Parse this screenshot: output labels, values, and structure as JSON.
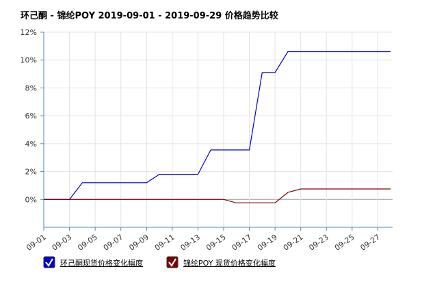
{
  "chart_data": {
    "type": "line",
    "title": "环己酮 - 锦纶POY 2019-09-01 - 2019-09-29 价格趋势比较",
    "categories": [
      "09-01",
      null,
      "09-03",
      null,
      "09-05",
      null,
      "09-07",
      null,
      "09-09",
      null,
      "09-11",
      null,
      "09-13",
      null,
      "09-15",
      null,
      "09-17",
      null,
      "09-19",
      null,
      "09-21",
      null,
      "09-23",
      null,
      "09-25",
      null,
      "09-27",
      null
    ],
    "series": [
      {
        "name": "环己酮现货价格变化幅度",
        "color": "#0000cc",
        "values": [
          0,
          0,
          0,
          1.2,
          1.2,
          1.2,
          1.2,
          1.2,
          1.2,
          1.8,
          1.8,
          1.8,
          1.8,
          3.55,
          3.55,
          3.55,
          3.55,
          9.1,
          9.1,
          10.6,
          10.6,
          10.6,
          10.6,
          10.6,
          10.6,
          10.6,
          10.6,
          10.6
        ]
      },
      {
        "name": "锦纶POY 现货价格变化幅度",
        "color": "#800000",
        "values": [
          0,
          0,
          0,
          0,
          0,
          0,
          0,
          0,
          0,
          0,
          0,
          0,
          0,
          0,
          0,
          -0.25,
          -0.25,
          -0.25,
          -0.25,
          0.5,
          0.75,
          0.75,
          0.75,
          0.75,
          0.75,
          0.75,
          0.75,
          0.75
        ]
      }
    ],
    "ylim": [
      -2,
      12
    ],
    "yticks": [
      {
        "value": 0,
        "label": "0%"
      },
      {
        "value": 2,
        "label": "2%"
      },
      {
        "value": 4,
        "label": "4%"
      },
      {
        "value": 6,
        "label": "6%"
      },
      {
        "value": 8,
        "label": "8%"
      },
      {
        "value": 10,
        "label": "10%"
      },
      {
        "value": 12,
        "label": "12%"
      }
    ],
    "grid": true
  }
}
